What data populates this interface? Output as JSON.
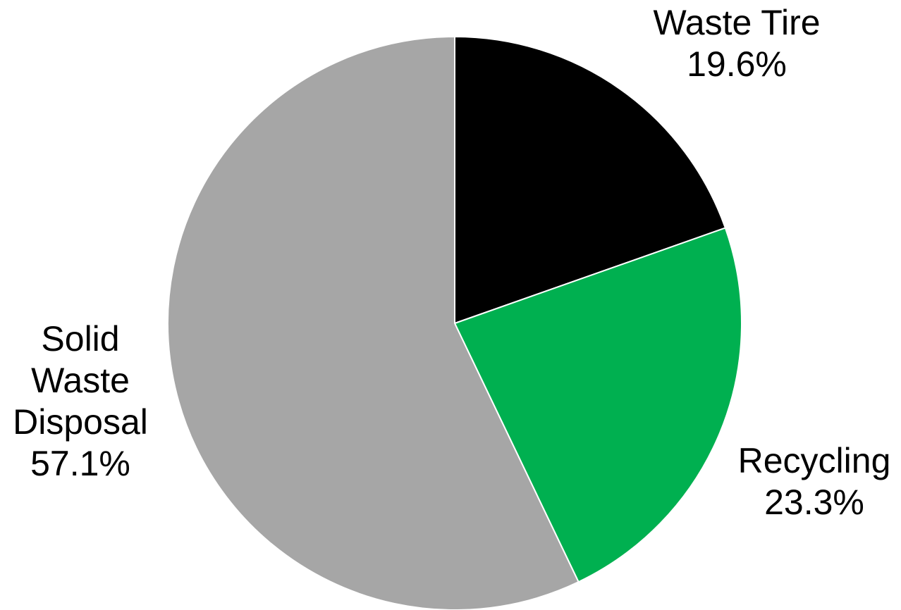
{
  "chart_data": {
    "type": "pie",
    "title": "",
    "slices": [
      {
        "name": "Waste Tire",
        "value": 19.6,
        "label_lines": [
          "Waste Tire",
          "19.6%"
        ],
        "color": "#000000"
      },
      {
        "name": "Recycling",
        "value": 23.3,
        "label_lines": [
          "Recycling",
          "23.3%"
        ],
        "color": "#00b050"
      },
      {
        "name": "Solid Waste Disposal",
        "value": 57.1,
        "label_lines": [
          "Solid",
          "Waste",
          "Disposal",
          "57.1%"
        ],
        "color": "#a6a6a6"
      }
    ],
    "start_angle": "12 o'clock",
    "direction": "clockwise",
    "legend": "none"
  }
}
